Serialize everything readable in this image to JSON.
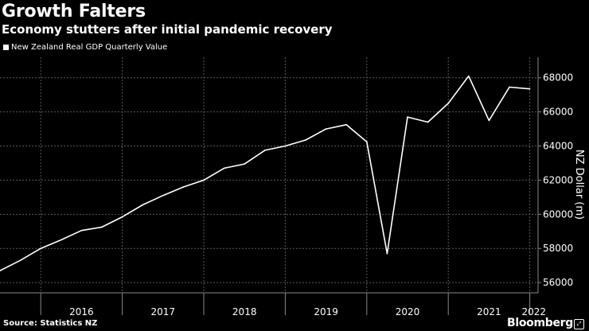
{
  "title": "Growth Falters",
  "subtitle": "Economy stutters after initial pandemic recovery",
  "source": "Source: Statistics NZ",
  "brand": "Bloomberg",
  "chart_data": {
    "type": "line",
    "title": "Growth Falters",
    "subtitle": "Economy stutters after initial pandemic recovery",
    "series": [
      {
        "name": "New Zealand Real GDP Quarterly Value",
        "color": "#ffffff",
        "x": [
          "2015-Q3",
          "2015-Q4",
          "2016-Q1",
          "2016-Q2",
          "2016-Q3",
          "2016-Q4",
          "2017-Q1",
          "2017-Q2",
          "2017-Q3",
          "2017-Q4",
          "2018-Q1",
          "2018-Q2",
          "2018-Q3",
          "2018-Q4",
          "2019-Q1",
          "2019-Q2",
          "2019-Q3",
          "2019-Q4",
          "2020-Q1",
          "2020-Q2",
          "2020-Q3",
          "2020-Q4",
          "2021-Q1",
          "2021-Q2",
          "2021-Q3",
          "2021-Q4",
          "2022-Q1"
        ],
        "values": [
          56700,
          57300,
          58000,
          58500,
          59050,
          59250,
          59850,
          60550,
          61100,
          61600,
          62000,
          62700,
          62950,
          63750,
          64000,
          64350,
          65000,
          65250,
          64250,
          57700,
          65700,
          65400,
          66500,
          68100,
          65500,
          67450,
          67350
        ]
      }
    ],
    "xlabel": "",
    "ylabel": "NZ Dollar (m)",
    "y_ticks": [
      56000,
      58000,
      60000,
      62000,
      64000,
      66000,
      68000
    ],
    "ylim": [
      55400,
      69200
    ],
    "x_year_labels": [
      "2016",
      "2017",
      "2018",
      "2019",
      "2020",
      "2021",
      "2022"
    ],
    "grid": true,
    "legend_position": "top-left"
  }
}
